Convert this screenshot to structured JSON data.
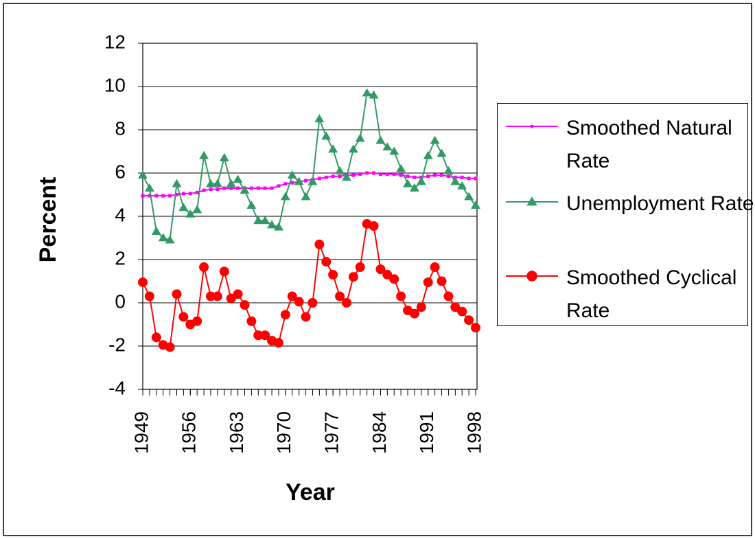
{
  "chart_data": {
    "type": "line",
    "y_label": "Percent",
    "x_label": "Year",
    "x": [
      1949,
      1950,
      1951,
      1952,
      1953,
      1954,
      1955,
      1956,
      1957,
      1958,
      1959,
      1960,
      1961,
      1962,
      1963,
      1964,
      1965,
      1966,
      1967,
      1968,
      1969,
      1970,
      1971,
      1972,
      1973,
      1974,
      1975,
      1976,
      1977,
      1978,
      1979,
      1980,
      1981,
      1982,
      1983,
      1984,
      1985,
      1986,
      1987,
      1988,
      1989,
      1990,
      1991,
      1992,
      1993,
      1994,
      1995,
      1996,
      1997,
      1998
    ],
    "xlim": [
      1949,
      1998
    ],
    "xticks": [
      1949,
      1956,
      1963,
      1970,
      1977,
      1984,
      1991,
      1998
    ],
    "ylim": [
      -4,
      12
    ],
    "yticks": [
      -4,
      -2,
      0,
      2,
      4,
      6,
      8,
      10,
      12
    ],
    "grid": true,
    "legend": "right",
    "series": [
      {
        "name": "Smoothed Natural Rate",
        "color": "#ff00ff",
        "marker": "square",
        "values": [
          4.95,
          4.95,
          4.95,
          4.95,
          4.95,
          5.0,
          5.05,
          5.05,
          5.1,
          5.2,
          5.25,
          5.25,
          5.3,
          5.3,
          5.3,
          5.3,
          5.3,
          5.3,
          5.3,
          5.3,
          5.4,
          5.5,
          5.55,
          5.6,
          5.65,
          5.7,
          5.75,
          5.8,
          5.85,
          5.85,
          5.9,
          5.9,
          5.95,
          6.0,
          6.0,
          5.95,
          5.95,
          5.95,
          5.9,
          5.85,
          5.8,
          5.8,
          5.85,
          5.9,
          5.9,
          5.85,
          5.8,
          5.8,
          5.75,
          5.75
        ]
      },
      {
        "name": "Unemployment Rate",
        "color": "#339966",
        "marker": "triangle",
        "values": [
          5.9,
          5.3,
          3.3,
          3.0,
          2.9,
          5.5,
          4.4,
          4.1,
          4.3,
          6.8,
          5.5,
          5.5,
          6.7,
          5.5,
          5.7,
          5.2,
          4.5,
          3.8,
          3.8,
          3.6,
          3.5,
          4.9,
          5.9,
          5.6,
          4.9,
          5.6,
          8.5,
          7.7,
          7.1,
          6.1,
          5.8,
          7.1,
          7.6,
          9.7,
          9.6,
          7.5,
          7.2,
          7.0,
          6.2,
          5.5,
          5.3,
          5.6,
          6.8,
          7.5,
          6.9,
          6.1,
          5.6,
          5.4,
          4.9,
          4.5
        ]
      },
      {
        "name": "Smoothed Cyclical Rate",
        "color": "#ff0000",
        "marker": "circle",
        "values": [
          0.95,
          0.3,
          -1.6,
          -1.95,
          -2.05,
          0.4,
          -0.65,
          -1.0,
          -0.85,
          1.65,
          0.3,
          0.3,
          1.45,
          0.2,
          0.4,
          -0.1,
          -0.85,
          -1.5,
          -1.5,
          -1.75,
          -1.85,
          -0.55,
          0.3,
          0.05,
          -0.65,
          0,
          2.7,
          1.9,
          1.3,
          0.3,
          0,
          1.2,
          1.65,
          3.65,
          3.55,
          1.55,
          1.3,
          1.1,
          0.3,
          -0.35,
          -0.5,
          -0.2,
          0.95,
          1.65,
          1.0,
          0.3,
          -0.2,
          -0.4,
          -0.8,
          -1.15
        ]
      }
    ]
  }
}
